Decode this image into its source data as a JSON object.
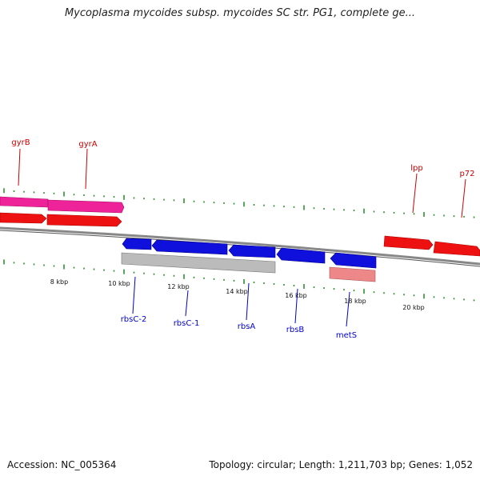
{
  "header": {
    "title": "Mycoplasma mycoides subsp. mycoides SC str. PG1, complete ge..."
  },
  "footer": {
    "accession": "Accession: NC_005364",
    "summary": "Topology: circular; Length: 1,211,703 bp; Genes: 1,052"
  },
  "colors": {
    "forward_gene": "#ee1111",
    "forward_gene_alt": "#ee2299",
    "reverse_gene": "#1010dd",
    "reverse_gene_alt": "#bbbbbb",
    "reverse_gene_pink": "#ee8888",
    "forward_label": "#cc0000",
    "reverse_label": "#0000cc",
    "backbone": "#888888",
    "tick": "#228822"
  },
  "scale": {
    "ticks": [
      {
        "label": "8 kbp"
      },
      {
        "label": "10 kbp"
      },
      {
        "label": "12 kbp"
      },
      {
        "label": "14 kbp"
      },
      {
        "label": "16 kbp"
      },
      {
        "label": "18 kbp"
      },
      {
        "label": "20 kbp"
      }
    ]
  },
  "forward_labels": [
    {
      "name": "gyrB"
    },
    {
      "name": "gyrA"
    },
    {
      "name": "lpp"
    },
    {
      "name": "p72"
    }
  ],
  "reverse_labels": [
    {
      "name": "rbsC-2"
    },
    {
      "name": "rbsC-1"
    },
    {
      "name": "rbsA"
    },
    {
      "name": "rbsB"
    },
    {
      "name": "metS"
    }
  ]
}
